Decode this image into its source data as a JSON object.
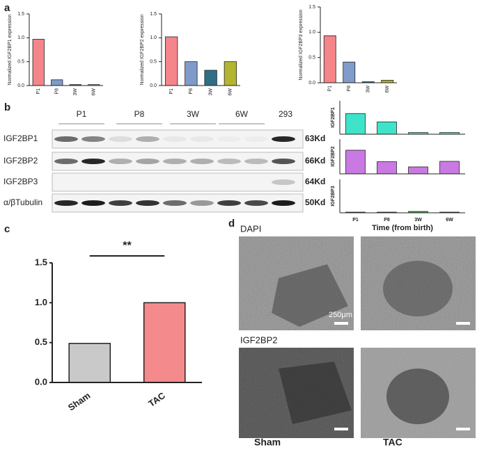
{
  "chart_data": [
    {
      "type": "bar",
      "y_label": "Normalized IGF2BP1 expression",
      "categories": [
        "P1",
        "P8",
        "3W",
        "6W"
      ],
      "values": [
        0.97,
        0.12,
        0.02,
        0.02
      ],
      "colors": [
        "#f4858a",
        "#7f9bc9",
        "#2f6e86",
        "#b3b52e"
      ],
      "ylim": [
        0,
        1.5
      ],
      "yticks": [
        {
          "value": 0,
          "label": "0.0"
        },
        0.5,
        {
          "value": 1,
          "label": "1.0"
        },
        1.5
      ]
    },
    {
      "type": "bar",
      "y_label": "Normalized IGF2BP2 expression",
      "categories": [
        "P1",
        "P8",
        "3W",
        "6W"
      ],
      "values": [
        1.02,
        0.5,
        0.32,
        0.5
      ],
      "colors": [
        "#f4858a",
        "#7f9bc9",
        "#2f6e86",
        "#b3b52e"
      ],
      "ylim": [
        0,
        1.5
      ],
      "yticks": [
        {
          "value": 0,
          "label": "0.0"
        },
        0.5,
        {
          "value": 1,
          "label": "1.0"
        },
        1.5
      ]
    },
    {
      "type": "bar",
      "y_label": "Normalized IGF2BP3 expression",
      "categories": [
        "P1",
        "P8",
        "3W",
        "6W"
      ],
      "values": [
        0.93,
        0.41,
        0.02,
        0.05
      ],
      "colors": [
        "#f4858a",
        "#7f9bc9",
        "#2f6e86",
        "#b3b52e"
      ],
      "ylim": [
        0,
        1.5
      ],
      "yticks": [
        {
          "value": 0,
          "label": "0.0"
        },
        0.5,
        {
          "value": 1,
          "label": "1.0"
        },
        1.5
      ]
    },
    {
      "type": "bar",
      "y_label": "IGF2BP1",
      "values": [
        0.62,
        0.37,
        0.05,
        0.05
      ],
      "colors": [
        "#3fe3c9",
        "#3fe3c9",
        "#3fe3c9",
        "#3fe3c9"
      ],
      "ylim": [
        0,
        1
      ]
    },
    {
      "type": "bar",
      "y_label": "IGF2BP2",
      "values": [
        0.68,
        0.35,
        0.2,
        0.36
      ],
      "colors": [
        "#c97ae2",
        "#c97ae2",
        "#c97ae2",
        "#c97ae2"
      ],
      "ylim": [
        0,
        1
      ]
    },
    {
      "type": "bar",
      "y_label": "IGF2BP3",
      "x_label": "Time (from birth)",
      "categories": [
        "P1",
        "P8",
        "3W",
        "6W"
      ],
      "values": [
        0.02,
        0.02,
        0.04,
        0.02
      ],
      "colors": [
        "#4caf50",
        "#4caf50",
        "#4caf50",
        "#4caf50"
      ],
      "ylim": [
        0,
        1
      ]
    },
    {
      "type": "bar",
      "annotation": "**",
      "categories": [
        "Sham",
        "TAC"
      ],
      "values": [
        0.49,
        1.0
      ],
      "colors": [
        "#c9c9c9",
        "#f58a8c"
      ],
      "ylim": [
        0,
        1.5
      ],
      "yticks": [
        {
          "value": 0,
          "label": "0.0"
        },
        0.5,
        {
          "value": 1,
          "label": "1.0"
        },
        1.5
      ]
    }
  ],
  "panels": {
    "a": "a",
    "b": "b",
    "c": "c",
    "d": "d"
  },
  "blot": {
    "lanes": [
      "P1",
      "P8",
      "3W",
      "6W",
      "293"
    ],
    "rows": [
      "IGF2BP1",
      "IGF2BP2",
      "IGF2BP3",
      "α/βTubulin"
    ],
    "sizes": [
      "63Kd",
      "66Kd",
      "64Kd",
      "50Kd"
    ]
  },
  "images": {
    "stain_top": "DAPI",
    "stain_bottom": "IGF2BP2",
    "scale": "250μm",
    "left": "Sham",
    "right": "TAC"
  }
}
